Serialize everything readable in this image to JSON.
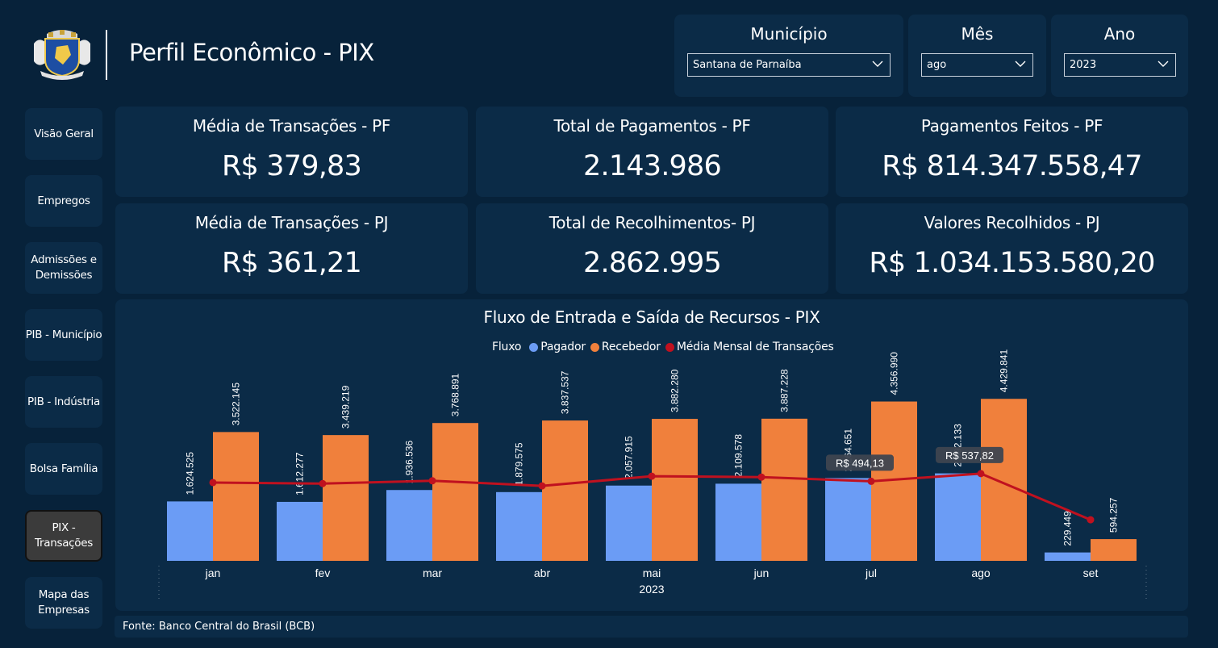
{
  "header": {
    "title": "Perfil Econômico - PIX"
  },
  "filters": {
    "municipio": {
      "label": "Município",
      "value": "Santana de Parnaíba"
    },
    "mes": {
      "label": "Mês",
      "value": "ago"
    },
    "ano": {
      "label": "Ano",
      "value": "2023"
    }
  },
  "nav": [
    {
      "label": "Visão Geral"
    },
    {
      "label": "Empregos"
    },
    {
      "label": "Admissões e Demissões"
    },
    {
      "label": "PIB - Município"
    },
    {
      "label": "PIB - Indústria"
    },
    {
      "label": "Bolsa Família"
    },
    {
      "label": "PIX - Transações",
      "active": true
    },
    {
      "label": "Mapa das Empresas"
    }
  ],
  "kpis": [
    {
      "label": "Média de Transações - PF",
      "value": "R$ 379,83"
    },
    {
      "label": "Total de Pagamentos - PF",
      "value": "2.143.986"
    },
    {
      "label": "Pagamentos Feitos - PF",
      "value": "R$ 814.347.558,47"
    },
    {
      "label": "Média de Transações - PJ",
      "value": "R$ 361,21"
    },
    {
      "label": "Total de Recolhimentos- PJ",
      "value": "2.862.995"
    },
    {
      "label": "Valores Recolhidos - PJ",
      "value": "R$ 1.034.153.580,20"
    }
  ],
  "chart_data": {
    "type": "bar",
    "title": "Fluxo de Entrada e Saída de Recursos - PIX",
    "legend_title": "Fluxo",
    "legend_position": "top-center",
    "xlabel": "2023",
    "categories": [
      "jan",
      "fev",
      "mar",
      "abr",
      "mai",
      "jun",
      "jul",
      "ago",
      "set"
    ],
    "series": [
      {
        "name": "Pagador",
        "kind": "bar",
        "color": "#6b9cf5",
        "values": [
          1624525,
          1612277,
          1936536,
          1879575,
          2057915,
          2109578,
          2264651,
          2392133,
          229449
        ],
        "labels": [
          "1.624.525",
          "1.612.277",
          "1.936.536",
          "1.879.575",
          "2.057.915",
          "2.109.578",
          "2.264.651",
          "2.392.133",
          "229.449"
        ]
      },
      {
        "name": "Recebedor",
        "kind": "bar",
        "color": "#f0803c",
        "values": [
          3522145,
          3439219,
          3768891,
          3837537,
          3882280,
          3887228,
          4356990,
          4429841,
          594257
        ],
        "labels": [
          "3.522.145",
          "3.439.219",
          "3.768.891",
          "3.837.537",
          "3.882.280",
          "3.887.228",
          "4.356.990",
          "4.429.841",
          "594.257"
        ]
      },
      {
        "name": "Média Mensal de Transações",
        "kind": "line",
        "color": "#c0111f",
        "values": [
          487,
          481,
          497,
          468,
          523,
          518,
          494.13,
          537.82,
          275
        ],
        "tooltips": [
          {
            "month": "jul",
            "text": "R$ 494,13"
          },
          {
            "month": "ago",
            "text": "R$ 537,82"
          }
        ]
      }
    ],
    "ylim_bars": [
      0,
      4700000
    ],
    "ylim_line": [
      0,
      900
    ],
    "grid": false
  },
  "footer": {
    "source": "Fonte: Banco Central do Brasil (BCB)"
  }
}
